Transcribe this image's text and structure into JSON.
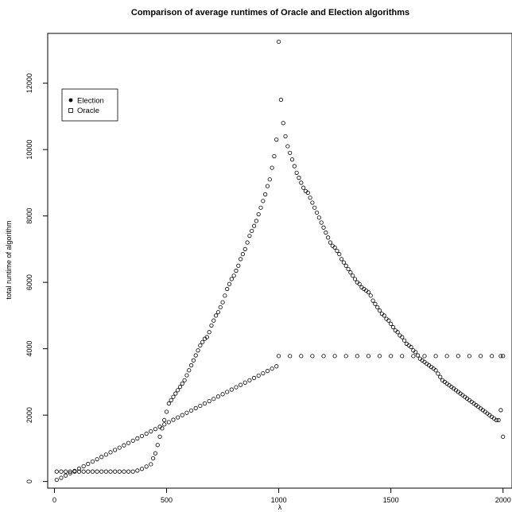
{
  "chart_data": {
    "type": "scatter",
    "title": "Comparison of average runtimes of Oracle and Election algorithms",
    "xlabel": "λ",
    "ylabel": "total runtime of algorithm",
    "xlim": [
      -30,
      2040
    ],
    "ylim": [
      -200,
      13500
    ],
    "x_ticks": [
      0,
      500,
      1000,
      1500,
      2000
    ],
    "y_ticks": [
      0,
      2000,
      4000,
      6000,
      8000,
      10000,
      12000
    ],
    "grid": false,
    "legend": {
      "placement": "top-left",
      "entries": [
        "Election",
        "Oracle"
      ]
    },
    "series": [
      {
        "name": "Oracle",
        "marker": "open-circle",
        "color": "#000000",
        "points": [
          [
            10,
            50
          ],
          [
            30,
            110
          ],
          [
            50,
            180
          ],
          [
            70,
            250
          ],
          [
            90,
            320
          ],
          [
            110,
            390
          ],
          [
            130,
            460
          ],
          [
            150,
            530
          ],
          [
            170,
            600
          ],
          [
            190,
            670
          ],
          [
            210,
            740
          ],
          [
            230,
            810
          ],
          [
            250,
            880
          ],
          [
            270,
            950
          ],
          [
            290,
            1020
          ],
          [
            310,
            1090
          ],
          [
            330,
            1160
          ],
          [
            350,
            1230
          ],
          [
            370,
            1300
          ],
          [
            390,
            1370
          ],
          [
            410,
            1440
          ],
          [
            430,
            1510
          ],
          [
            450,
            1580
          ],
          [
            470,
            1650
          ],
          [
            490,
            1720
          ],
          [
            510,
            1790
          ],
          [
            530,
            1860
          ],
          [
            550,
            1930
          ],
          [
            570,
            2000
          ],
          [
            590,
            2070
          ],
          [
            610,
            2140
          ],
          [
            630,
            2210
          ],
          [
            650,
            2280
          ],
          [
            670,
            2350
          ],
          [
            690,
            2420
          ],
          [
            710,
            2490
          ],
          [
            730,
            2560
          ],
          [
            750,
            2630
          ],
          [
            770,
            2700
          ],
          [
            790,
            2770
          ],
          [
            810,
            2840
          ],
          [
            830,
            2910
          ],
          [
            850,
            2980
          ],
          [
            870,
            3050
          ],
          [
            890,
            3120
          ],
          [
            910,
            3190
          ],
          [
            930,
            3260
          ],
          [
            950,
            3330
          ],
          [
            970,
            3400
          ],
          [
            990,
            3470
          ],
          [
            1000,
            3780
          ],
          [
            1050,
            3780
          ],
          [
            1100,
            3780
          ],
          [
            1150,
            3780
          ],
          [
            1200,
            3780
          ],
          [
            1250,
            3780
          ],
          [
            1300,
            3780
          ],
          [
            1350,
            3780
          ],
          [
            1400,
            3780
          ],
          [
            1450,
            3780
          ],
          [
            1500,
            3780
          ],
          [
            1550,
            3780
          ],
          [
            1600,
            3780
          ],
          [
            1650,
            3780
          ],
          [
            1700,
            3780
          ],
          [
            1750,
            3780
          ],
          [
            1800,
            3780
          ],
          [
            1850,
            3780
          ],
          [
            1900,
            3780
          ],
          [
            1950,
            3780
          ],
          [
            1990,
            3780
          ],
          [
            2000,
            3780
          ]
        ]
      },
      {
        "name": "Election",
        "marker": "open-circle",
        "color": "#000000",
        "points": [
          [
            10,
            300
          ],
          [
            30,
            300
          ],
          [
            50,
            300
          ],
          [
            70,
            300
          ],
          [
            90,
            300
          ],
          [
            110,
            300
          ],
          [
            130,
            300
          ],
          [
            150,
            300
          ],
          [
            170,
            300
          ],
          [
            190,
            300
          ],
          [
            210,
            300
          ],
          [
            230,
            300
          ],
          [
            250,
            300
          ],
          [
            270,
            300
          ],
          [
            290,
            300
          ],
          [
            310,
            300
          ],
          [
            330,
            300
          ],
          [
            350,
            300
          ],
          [
            370,
            330
          ],
          [
            390,
            380
          ],
          [
            410,
            450
          ],
          [
            430,
            520
          ],
          [
            440,
            700
          ],
          [
            450,
            850
          ],
          [
            460,
            1100
          ],
          [
            470,
            1350
          ],
          [
            480,
            1600
          ],
          [
            490,
            1850
          ],
          [
            500,
            2100
          ],
          [
            510,
            2350
          ],
          [
            520,
            2450
          ],
          [
            530,
            2550
          ],
          [
            540,
            2650
          ],
          [
            550,
            2750
          ],
          [
            560,
            2850
          ],
          [
            570,
            2950
          ],
          [
            580,
            3050
          ],
          [
            590,
            3200
          ],
          [
            600,
            3350
          ],
          [
            610,
            3500
          ],
          [
            620,
            3650
          ],
          [
            630,
            3800
          ],
          [
            640,
            3950
          ],
          [
            650,
            4100
          ],
          [
            660,
            4200
          ],
          [
            670,
            4300
          ],
          [
            680,
            4350
          ],
          [
            690,
            4500
          ],
          [
            700,
            4700
          ],
          [
            710,
            4850
          ],
          [
            720,
            5000
          ],
          [
            730,
            5100
          ],
          [
            740,
            5250
          ],
          [
            750,
            5400
          ],
          [
            760,
            5600
          ],
          [
            770,
            5800
          ],
          [
            780,
            5950
          ],
          [
            790,
            6100
          ],
          [
            800,
            6200
          ],
          [
            810,
            6350
          ],
          [
            820,
            6500
          ],
          [
            830,
            6700
          ],
          [
            840,
            6850
          ],
          [
            850,
            7000
          ],
          [
            860,
            7200
          ],
          [
            870,
            7400
          ],
          [
            880,
            7550
          ],
          [
            890,
            7700
          ],
          [
            900,
            7850
          ],
          [
            910,
            8050
          ],
          [
            920,
            8250
          ],
          [
            930,
            8450
          ],
          [
            940,
            8650
          ],
          [
            950,
            8900
          ],
          [
            960,
            9100
          ],
          [
            970,
            9450
          ],
          [
            980,
            9800
          ],
          [
            990,
            10300
          ],
          [
            1000,
            13250
          ],
          [
            1010,
            11500
          ],
          [
            1020,
            10800
          ],
          [
            1030,
            10400
          ],
          [
            1040,
            10100
          ],
          [
            1050,
            9900
          ],
          [
            1060,
            9700
          ],
          [
            1070,
            9500
          ],
          [
            1080,
            9300
          ],
          [
            1090,
            9150
          ],
          [
            1100,
            9000
          ],
          [
            1110,
            8850
          ],
          [
            1120,
            8750
          ],
          [
            1130,
            8700
          ],
          [
            1140,
            8550
          ],
          [
            1150,
            8400
          ],
          [
            1160,
            8250
          ],
          [
            1170,
            8100
          ],
          [
            1180,
            7950
          ],
          [
            1190,
            7800
          ],
          [
            1200,
            7650
          ],
          [
            1210,
            7500
          ],
          [
            1220,
            7350
          ],
          [
            1230,
            7200
          ],
          [
            1240,
            7100
          ],
          [
            1250,
            7050
          ],
          [
            1260,
            6950
          ],
          [
            1270,
            6850
          ],
          [
            1280,
            6700
          ],
          [
            1290,
            6600
          ],
          [
            1300,
            6500
          ],
          [
            1310,
            6400
          ],
          [
            1320,
            6300
          ],
          [
            1330,
            6200
          ],
          [
            1340,
            6100
          ],
          [
            1350,
            6000
          ],
          [
            1360,
            5950
          ],
          [
            1370,
            5850
          ],
          [
            1380,
            5800
          ],
          [
            1390,
            5750
          ],
          [
            1400,
            5700
          ],
          [
            1410,
            5600
          ],
          [
            1420,
            5450
          ],
          [
            1430,
            5350
          ],
          [
            1440,
            5250
          ],
          [
            1450,
            5150
          ],
          [
            1460,
            5050
          ],
          [
            1470,
            5000
          ],
          [
            1480,
            4900
          ],
          [
            1490,
            4850
          ],
          [
            1500,
            4750
          ],
          [
            1510,
            4650
          ],
          [
            1520,
            4550
          ],
          [
            1530,
            4500
          ],
          [
            1540,
            4400
          ],
          [
            1550,
            4350
          ],
          [
            1560,
            4250
          ],
          [
            1570,
            4150
          ],
          [
            1580,
            4100
          ],
          [
            1590,
            4050
          ],
          [
            1600,
            3950
          ],
          [
            1610,
            3900
          ],
          [
            1620,
            3800
          ],
          [
            1630,
            3700
          ],
          [
            1640,
            3650
          ],
          [
            1650,
            3600
          ],
          [
            1660,
            3550
          ],
          [
            1670,
            3500
          ],
          [
            1680,
            3450
          ],
          [
            1690,
            3400
          ],
          [
            1700,
            3350
          ],
          [
            1710,
            3250
          ],
          [
            1720,
            3150
          ],
          [
            1730,
            3050
          ],
          [
            1740,
            3000
          ],
          [
            1750,
            2950
          ],
          [
            1760,
            2900
          ],
          [
            1770,
            2850
          ],
          [
            1780,
            2800
          ],
          [
            1790,
            2750
          ],
          [
            1800,
            2700
          ],
          [
            1810,
            2650
          ],
          [
            1820,
            2600
          ],
          [
            1830,
            2550
          ],
          [
            1840,
            2500
          ],
          [
            1850,
            2450
          ],
          [
            1860,
            2400
          ],
          [
            1870,
            2350
          ],
          [
            1880,
            2300
          ],
          [
            1890,
            2250
          ],
          [
            1900,
            2200
          ],
          [
            1910,
            2150
          ],
          [
            1920,
            2100
          ],
          [
            1930,
            2050
          ],
          [
            1940,
            2000
          ],
          [
            1950,
            1950
          ],
          [
            1960,
            1900
          ],
          [
            1970,
            1850
          ],
          [
            1980,
            1850
          ],
          [
            1990,
            2150
          ],
          [
            2000,
            1350
          ]
        ]
      }
    ]
  }
}
